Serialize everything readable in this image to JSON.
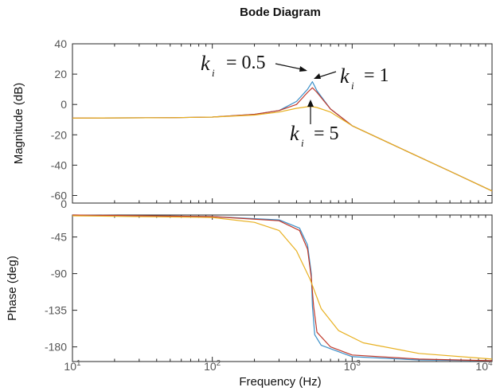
{
  "chart_data": {
    "type": "line",
    "title": "Bode Diagram",
    "xlabel": "Frequency  (Hz)",
    "x_scale": "log",
    "xlim": [
      10,
      10000
    ],
    "x_ticks": [
      {
        "value": 10,
        "base": "10",
        "exp": "1"
      },
      {
        "value": 100,
        "base": "10",
        "exp": "2"
      },
      {
        "value": 1000,
        "base": "10",
        "exp": "3"
      },
      {
        "value": 10000,
        "base": "10",
        "exp": "4"
      }
    ],
    "grid": false,
    "resonance_hz": 520,
    "subplots": [
      {
        "ylabel": "Magnitude (dB)",
        "ylim": [
          -65,
          40
        ],
        "y_ticks": [
          "40",
          "20",
          "0",
          "-20",
          "-40",
          "-60"
        ],
        "extra_tick_label": "0",
        "series": [
          {
            "label": "k_i = 0.5",
            "color": "#3a8fc8",
            "points": [
              [
                10,
                -9
              ],
              [
                50,
                -8.7
              ],
              [
                100,
                -8.3
              ],
              [
                200,
                -6.5
              ],
              [
                300,
                -4
              ],
              [
                400,
                2
              ],
              [
                480,
                10
              ],
              [
                520,
                15
              ],
              [
                560,
                9
              ],
              [
                700,
                -3
              ],
              [
                1000,
                -14
              ],
              [
                2000,
                -27
              ],
              [
                5000,
                -44
              ],
              [
                10000,
                -57
              ]
            ]
          },
          {
            "label": "k_i = 1",
            "color": "#c0392b",
            "points": [
              [
                10,
                -9
              ],
              [
                50,
                -8.7
              ],
              [
                100,
                -8.3
              ],
              [
                200,
                -6.5
              ],
              [
                300,
                -4
              ],
              [
                400,
                0
              ],
              [
                480,
                8
              ],
              [
                520,
                11
              ],
              [
                560,
                8
              ],
              [
                700,
                -3
              ],
              [
                1000,
                -14
              ],
              [
                2000,
                -27
              ],
              [
                5000,
                -44
              ],
              [
                10000,
                -57
              ]
            ]
          },
          {
            "label": "k_i = 5",
            "color": "#e8b020",
            "points": [
              [
                10,
                -9
              ],
              [
                50,
                -8.7
              ],
              [
                100,
                -8.3
              ],
              [
                200,
                -7
              ],
              [
                300,
                -5
              ],
              [
                400,
                -2.5
              ],
              [
                480,
                -1.5
              ],
              [
                520,
                -1.5
              ],
              [
                560,
                -2
              ],
              [
                700,
                -5
              ],
              [
                1000,
                -14
              ],
              [
                2000,
                -27
              ],
              [
                5000,
                -44
              ],
              [
                10000,
                -57
              ]
            ]
          }
        ]
      },
      {
        "ylabel": "Phase (deg)",
        "ylim": [
          -198,
          -18
        ],
        "y_ticks": [
          "-45",
          "-90",
          "-135",
          "-180"
        ],
        "series": [
          {
            "label": "k_i = 0.5",
            "color": "#3a8fc8",
            "points": [
              [
                10,
                -18
              ],
              [
                100,
                -20
              ],
              [
                300,
                -24
              ],
              [
                420,
                -34
              ],
              [
                480,
                -55
              ],
              [
                510,
                -90
              ],
              [
                520,
                -130
              ],
              [
                540,
                -165
              ],
              [
                600,
                -178
              ],
              [
                1000,
                -192
              ],
              [
                3000,
                -196
              ],
              [
                10000,
                -197
              ]
            ]
          },
          {
            "label": "k_i = 1",
            "color": "#c0392b",
            "points": [
              [
                10,
                -18
              ],
              [
                100,
                -20
              ],
              [
                300,
                -25
              ],
              [
                420,
                -37
              ],
              [
                480,
                -60
              ],
              [
                510,
                -95
              ],
              [
                530,
                -130
              ],
              [
                560,
                -162
              ],
              [
                700,
                -180
              ],
              [
                1000,
                -190
              ],
              [
                3000,
                -195
              ],
              [
                10000,
                -197
              ]
            ]
          },
          {
            "label": "k_i = 5",
            "color": "#e8b020",
            "points": [
              [
                10,
                -19
              ],
              [
                100,
                -21
              ],
              [
                200,
                -27
              ],
              [
                300,
                -37
              ],
              [
                400,
                -62
              ],
              [
                500,
                -97
              ],
              [
                600,
                -133
              ],
              [
                800,
                -160
              ],
              [
                1200,
                -175
              ],
              [
                3000,
                -188
              ],
              [
                10000,
                -195
              ]
            ]
          }
        ]
      }
    ],
    "annotations": [
      {
        "k": "k",
        "sub": "i",
        "text": "= 0.5"
      },
      {
        "k": "k",
        "sub": "i",
        "text": "= 1"
      },
      {
        "k": "k",
        "sub": "i",
        "text": "= 5"
      }
    ]
  }
}
